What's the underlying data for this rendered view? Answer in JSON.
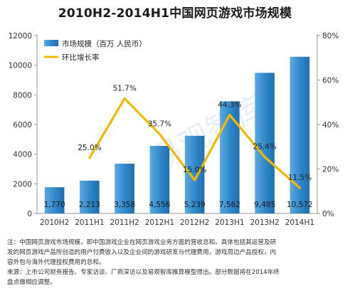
{
  "chart_data": {
    "type": "bar+line",
    "title": "2010H2-2014H1中国网页游戏市场规模",
    "categories": [
      "2010H2",
      "2011H1",
      "2011H2",
      "2012H1",
      "2012H2",
      "2013H1",
      "2013H2",
      "2014H1"
    ],
    "series": [
      {
        "name": "市场规模（百万 人民币）",
        "type": "bar",
        "axis": "left",
        "color": "#2e86c9",
        "values": [
          1770,
          2213,
          3358,
          4556,
          5239,
          7562,
          9485,
          10572
        ],
        "labels": [
          "1,770",
          "2,213",
          "3,358",
          "4,556",
          "5,239",
          "7,562",
          "9,485",
          "10,572"
        ]
      },
      {
        "name": "环比增长率",
        "type": "line",
        "axis": "right",
        "color": "#f5b800",
        "values": [
          null,
          25.0,
          51.7,
          35.7,
          15.0,
          44.3,
          25.4,
          11.5
        ],
        "labels": [
          null,
          "25.0%",
          "51.7%",
          "35.7%",
          "15.0%",
          "44.3%",
          "25.4%",
          "11.5%"
        ]
      }
    ],
    "yleft": {
      "min": 0,
      "max": 12000,
      "ticks": [
        "0",
        "2000",
        "4000",
        "6000",
        "8000",
        "10000",
        "12000"
      ]
    },
    "yright": {
      "min": 0,
      "max": 80,
      "ticks": [
        "0%",
        "20%",
        "40%",
        "60%",
        "80%"
      ]
    },
    "legend_placement": "top-left",
    "grid": false
  },
  "notes": {
    "line1": "注：中国网页游戏市场规模，即中国游戏企业在网页游戏业务方面的营收总和。具体包括其运营及研",
    "line2": "发的网页游戏产品所创造的用户付费收入以及企业间的游戏研发与代理费用，游戏周边产品授权，内",
    "line3": "容外包与海外代理授权费用的总和。",
    "line4": "来源：上市公司财务报告、专家访谈、厂商深访以及易观智库推算模型得出。部分数据将在2014年终",
    "line5": "盘点做相应调整。"
  },
  "watermark": "易观智库"
}
